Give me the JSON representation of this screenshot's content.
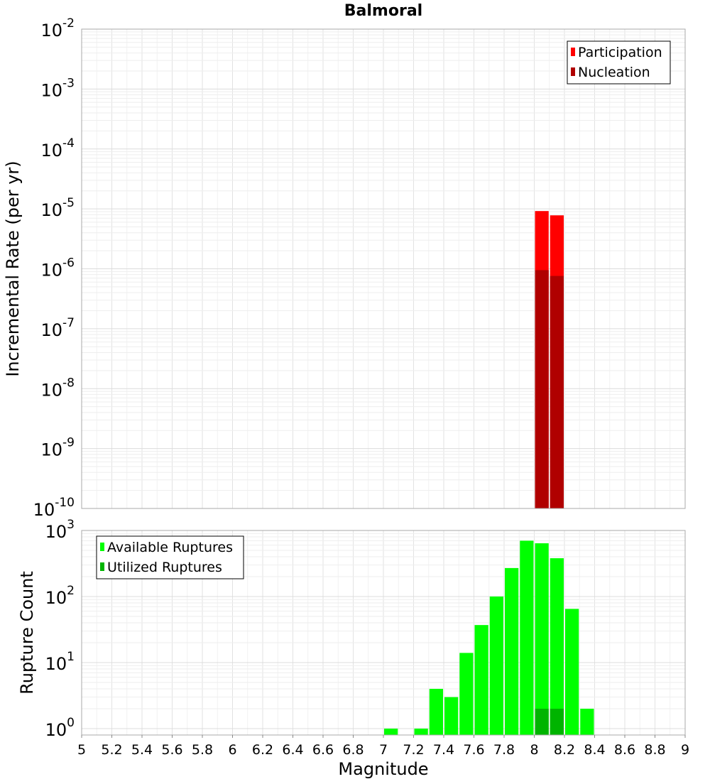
{
  "chart_data": [
    {
      "type": "bar",
      "title": "Balmoral",
      "ylabel": "Incremental Rate (per yr)",
      "xlabel": "",
      "yscale": "log",
      "ylim": [
        1e-10,
        0.01
      ],
      "xlim": [
        5,
        9
      ],
      "bin_width": 0.1,
      "ytick_labels": [
        "10^-10",
        "10^-9",
        "10^-8",
        "10^-7",
        "10^-6",
        "10^-5",
        "10^-4",
        "10^-3",
        "10^-2"
      ],
      "legend_position": "top-right",
      "series": [
        {
          "name": "Participation",
          "color": "#ff0000",
          "x": [
            8.05,
            8.15
          ],
          "values": [
            9.2e-06,
            7.8e-06
          ]
        },
        {
          "name": "Nucleation",
          "color": "#b00000",
          "x": [
            8.05,
            8.15
          ],
          "values": [
            9.5e-07,
            7.6e-07
          ]
        }
      ]
    },
    {
      "type": "bar",
      "title": "",
      "ylabel": "Rupture Count",
      "xlabel": "Magnitude",
      "yscale": "log",
      "ylim": [
        0.8,
        1000
      ],
      "xlim": [
        5,
        9
      ],
      "bin_width": 0.1,
      "ytick_labels": [
        "10^0",
        "10^1",
        "10^2",
        "10^3"
      ],
      "xtick_labels": [
        "5",
        "5.2",
        "5.4",
        "5.6",
        "5.8",
        "6",
        "6.2",
        "6.4",
        "6.6",
        "6.8",
        "7",
        "7.2",
        "7.4",
        "7.6",
        "7.8",
        "8",
        "8.2",
        "8.4",
        "8.6",
        "8.8",
        "9"
      ],
      "legend_position": "top-left",
      "series": [
        {
          "name": "Available Ruptures",
          "color": "#00ff00",
          "x": [
            7.05,
            7.25,
            7.35,
            7.45,
            7.55,
            7.65,
            7.75,
            7.85,
            7.95,
            8.05,
            8.15,
            8.25,
            8.35
          ],
          "values": [
            1,
            1,
            4,
            3,
            14,
            37,
            100,
            270,
            700,
            640,
            380,
            65,
            2
          ]
        },
        {
          "name": "Utilized Ruptures",
          "color": "#00b400",
          "x": [
            8.05,
            8.15
          ],
          "values": [
            2,
            2
          ]
        }
      ]
    }
  ]
}
